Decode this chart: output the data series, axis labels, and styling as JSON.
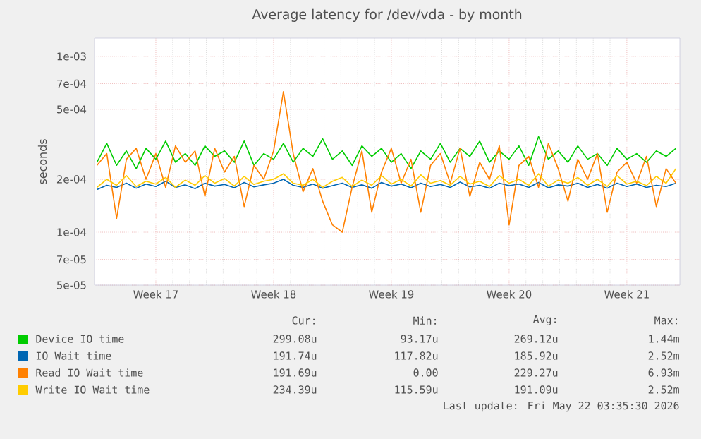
{
  "chart_data": {
    "type": "line",
    "title": "Average latency for /dev/vda - by month",
    "ylabel": "seconds",
    "log": "y",
    "grid": true,
    "legend": "bottom",
    "marker": "none",
    "line_style": "solid",
    "ylim": [
      5e-05,
      0.00127
    ],
    "yticks": [
      {
        "value": 5e-05,
        "label": "5e-05"
      },
      {
        "value": 7e-05,
        "label": "7e-05"
      },
      {
        "value": 0.0001,
        "label": "1e-04"
      },
      {
        "value": 0.0002,
        "label": "2e-04"
      },
      {
        "value": 0.0005,
        "label": "5e-04"
      },
      {
        "value": 0.0007,
        "label": "7e-04"
      },
      {
        "value": 0.001,
        "label": "1e-03"
      }
    ],
    "categories": [
      null,
      null,
      null,
      null,
      null,
      null,
      "Week 17",
      null,
      null,
      null,
      null,
      null,
      null,
      null,
      null,
      null,
      null,
      null,
      "Week 18",
      null,
      null,
      null,
      null,
      null,
      null,
      null,
      null,
      null,
      null,
      null,
      "Week 19",
      null,
      null,
      null,
      null,
      null,
      null,
      null,
      null,
      null,
      null,
      null,
      "Week 20",
      null,
      null,
      null,
      null,
      null,
      null,
      null,
      null,
      null,
      null,
      null,
      "Week 21",
      null,
      null,
      null,
      null,
      null
    ],
    "series": [
      {
        "name": "Device IO time",
        "color": "#00cc00",
        "values": [
          0.00025,
          0.00032,
          0.00024,
          0.00029,
          0.00023,
          0.0003,
          0.00026,
          0.00033,
          0.00025,
          0.00028,
          0.00024,
          0.00031,
          0.00027,
          0.00029,
          0.00025,
          0.00033,
          0.00024,
          0.00028,
          0.00026,
          0.00032,
          0.00025,
          0.0003,
          0.00027,
          0.00034,
          0.00026,
          0.00029,
          0.00024,
          0.00031,
          0.00027,
          0.0003,
          0.00025,
          0.00028,
          0.00023,
          0.00029,
          0.00026,
          0.00032,
          0.00025,
          0.0003,
          0.00027,
          0.00033,
          0.00025,
          0.00029,
          0.00026,
          0.00031,
          0.00024,
          0.00035,
          0.00026,
          0.00029,
          0.00025,
          0.00031,
          0.00026,
          0.00028,
          0.00024,
          0.0003,
          0.00026,
          0.00028,
          0.00025,
          0.00029,
          0.00027,
          0.0003
        ]
      },
      {
        "name": "IO Wait time",
        "color": "#0066b3",
        "values": [
          0.000175,
          0.000185,
          0.00018,
          0.00019,
          0.000178,
          0.000188,
          0.000182,
          0.000195,
          0.00018,
          0.000186,
          0.000177,
          0.00019,
          0.000183,
          0.000187,
          0.000179,
          0.000192,
          0.000181,
          0.000186,
          0.00019,
          0.0002,
          0.000185,
          0.00018,
          0.000188,
          0.000178,
          0.000184,
          0.00019,
          0.00018,
          0.000186,
          0.000178,
          0.000192,
          0.000183,
          0.000188,
          0.000179,
          0.00019,
          0.000182,
          0.000187,
          0.00018,
          0.000193,
          0.000181,
          0.000185,
          0.000178,
          0.00019,
          0.000184,
          0.000188,
          0.00018,
          0.000192,
          0.000179,
          0.000186,
          0.000183,
          0.00019,
          0.00018,
          0.000187,
          0.000178,
          0.00019,
          0.000182,
          0.000188,
          0.00018,
          0.000185,
          0.000182,
          0.00019
        ]
      },
      {
        "name": "Read IO Wait time",
        "color": "#ff8000",
        "values": [
          0.00024,
          0.00028,
          0.00012,
          0.00026,
          0.0003,
          0.0002,
          0.00028,
          0.00018,
          0.00031,
          0.00025,
          0.00029,
          0.00016,
          0.0003,
          0.00022,
          0.00027,
          0.00014,
          0.00024,
          0.0002,
          0.00029,
          0.00063,
          0.00028,
          0.00017,
          0.00023,
          0.00015,
          0.00011,
          0.0001,
          0.00018,
          0.00029,
          0.00013,
          0.00022,
          0.0003,
          0.00019,
          0.00026,
          0.00013,
          0.00024,
          0.00028,
          0.00019,
          0.0003,
          0.00016,
          0.00025,
          0.0002,
          0.00031,
          0.00011,
          0.00024,
          0.00027,
          0.00018,
          0.00032,
          0.00023,
          0.00015,
          0.00026,
          0.0002,
          0.00028,
          0.00013,
          0.00022,
          0.00025,
          0.00019,
          0.00027,
          0.00014,
          0.00023,
          0.00019
        ]
      },
      {
        "name": "Write IO Wait time",
        "color": "#ffcc00",
        "values": [
          0.00018,
          0.0002,
          0.000185,
          0.00021,
          0.000182,
          0.000195,
          0.000188,
          0.000205,
          0.00018,
          0.000198,
          0.000185,
          0.00021,
          0.00019,
          0.000202,
          0.000183,
          0.000208,
          0.000187,
          0.000195,
          0.0002,
          0.000215,
          0.00019,
          0.000185,
          0.0002,
          0.00018,
          0.000195,
          0.000205,
          0.000182,
          0.000198,
          0.000185,
          0.00021,
          0.000188,
          0.0002,
          0.000183,
          0.000212,
          0.00019,
          0.000197,
          0.000185,
          0.000208,
          0.000188,
          0.000195,
          0.000182,
          0.00021,
          0.00019,
          0.0002,
          0.000185,
          0.000215,
          0.000183,
          0.000198,
          0.00019,
          0.000205,
          0.000185,
          0.0002,
          0.000182,
          0.00021,
          0.000188,
          0.000195,
          0.000184,
          0.000208,
          0.00019,
          0.00023
        ]
      }
    ],
    "annotations": [
      "Cur:",
      "Min:",
      "Avg:",
      "Max:",
      "299.08u",
      "93.17u",
      "269.12u",
      "1.44m",
      "191.74u",
      "117.82u",
      "185.92u",
      "2.52m",
      "191.69u",
      "0.00",
      "229.27u",
      "6.93m",
      "234.39u",
      "115.59u",
      "191.09u",
      "2.52m",
      "Last update: Fri May 22 03:35:30 2026"
    ]
  }
}
